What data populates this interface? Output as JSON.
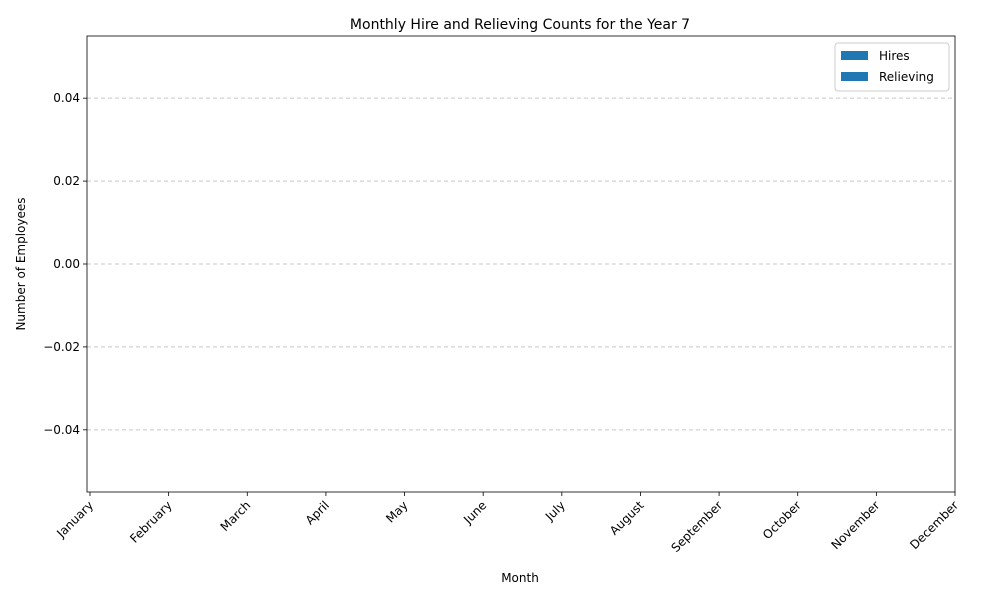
{
  "chart_data": {
    "type": "bar",
    "title": "Monthly Hire and Relieving Counts for the Year 7",
    "xlabel": "Month",
    "ylabel": "Number of Employees",
    "categories": [
      "January",
      "February",
      "March",
      "April",
      "May",
      "June",
      "July",
      "August",
      "September",
      "October",
      "November",
      "December"
    ],
    "series": [
      {
        "name": "Hires",
        "values": [
          0,
          0,
          0,
          0,
          0,
          0,
          0,
          0,
          0,
          0,
          0,
          0
        ],
        "color": "#1f77b4"
      },
      {
        "name": "Relieving",
        "values": [
          0,
          0,
          0,
          0,
          0,
          0,
          0,
          0,
          0,
          0,
          0,
          0
        ],
        "color": "#1f77b4"
      }
    ],
    "ylim": [
      -0.055,
      0.055
    ],
    "yticks": [
      -0.04,
      -0.02,
      0.0,
      0.02,
      0.04
    ],
    "ytick_labels": [
      "−0.04",
      "−0.02",
      "0.00",
      "0.02",
      "0.04"
    ],
    "grid": "y-dashed",
    "legend_position": "upper right",
    "xtick_rotation": "45 degrees"
  }
}
